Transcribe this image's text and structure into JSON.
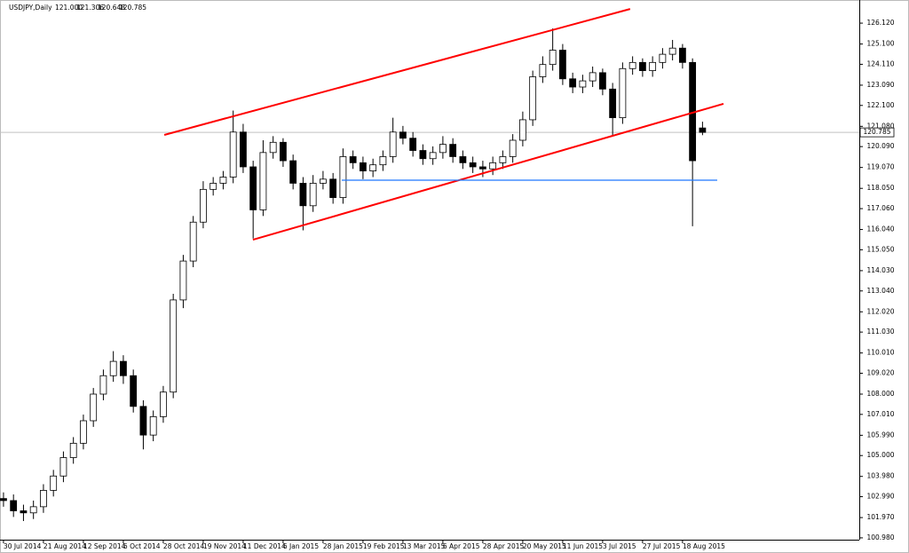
{
  "chart_data": {
    "type": "candlestick",
    "symbol": "USDJPY,Daily",
    "header_values": [
      "121.000",
      "121.306",
      "120.648",
      "120.785"
    ],
    "xlim": [
      -1.4,
      342.8
    ],
    "ylim": [
      100.89,
      127.25
    ],
    "xticks": [
      {
        "value": 0,
        "label": "30 Jul 2014"
      },
      {
        "value": 16,
        "label": "21 Aug 2014"
      },
      {
        "value": 32,
        "label": "12 Sep 2014"
      },
      {
        "value": 48,
        "label": "6 Oct 2014"
      },
      {
        "value": 64,
        "label": "28 Oct 2014"
      },
      {
        "value": 80,
        "label": "19 Nov 2014"
      },
      {
        "value": 96,
        "label": "11 Dec 2014"
      },
      {
        "value": 112,
        "label": "6 Jan 2015"
      },
      {
        "value": 128,
        "label": "28 Jan 2015"
      },
      {
        "value": 144,
        "label": "19 Feb 2015"
      },
      {
        "value": 160,
        "label": "13 Mar 2015"
      },
      {
        "value": 176,
        "label": "6 Apr 2015"
      },
      {
        "value": 192,
        "label": "28 Apr 2015"
      },
      {
        "value": 208,
        "label": "20 May 2015"
      },
      {
        "value": 224,
        "label": "11 Jun 2015"
      },
      {
        "value": 240,
        "label": "3 Jul 2015"
      },
      {
        "value": 256,
        "label": "27 Jul 2015"
      },
      {
        "value": 272,
        "label": "18 Aug 2015"
      }
    ],
    "yticks": [
      {
        "value": 126.12,
        "label": "126.120"
      },
      {
        "value": 125.1,
        "label": "125.100"
      },
      {
        "value": 124.11,
        "label": "124.110"
      },
      {
        "value": 123.09,
        "label": "123.090"
      },
      {
        "value": 122.1,
        "label": "122.100"
      },
      {
        "value": 121.08,
        "label": "121.080"
      },
      {
        "value": 120.09,
        "label": "120.090"
      },
      {
        "value": 119.07,
        "label": "119.070"
      },
      {
        "value": 118.05,
        "label": "118.050"
      },
      {
        "value": 117.06,
        "label": "117.060"
      },
      {
        "value": 116.04,
        "label": "116.040"
      },
      {
        "value": 115.05,
        "label": "115.050"
      },
      {
        "value": 114.03,
        "label": "114.030"
      },
      {
        "value": 113.04,
        "label": "113.040"
      },
      {
        "value": 112.02,
        "label": "112.020"
      },
      {
        "value": 111.03,
        "label": "111.030"
      },
      {
        "value": 110.01,
        "label": "110.010"
      },
      {
        "value": 109.02,
        "label": "109.020"
      },
      {
        "value": 108,
        "label": "108.000"
      },
      {
        "value": 107.01,
        "label": "107.010"
      },
      {
        "value": 105.99,
        "label": "105.990"
      },
      {
        "value": 105,
        "label": "105.000"
      },
      {
        "value": 103.98,
        "label": "103.980"
      },
      {
        "value": 102.99,
        "label": "102.990"
      },
      {
        "value": 101.97,
        "label": "101.970"
      },
      {
        "value": 100.98,
        "label": "100.980"
      }
    ],
    "current_price": {
      "value": 120.785,
      "label": "120.785"
    },
    "up_color": "#ffffff",
    "down_color": "#000000",
    "x": [
      0,
      4,
      8,
      12,
      16,
      20,
      24,
      28,
      32,
      36,
      40,
      44,
      48,
      52,
      56,
      60,
      64,
      68,
      72,
      76,
      80,
      84,
      88,
      92,
      96,
      100,
      104,
      108,
      112,
      116,
      120,
      124,
      128,
      132,
      136,
      140,
      144,
      148,
      152,
      156,
      160,
      164,
      168,
      172,
      176,
      180,
      184,
      188,
      192,
      196,
      200,
      204,
      208,
      212,
      216,
      220,
      224,
      228,
      232,
      236,
      240,
      244,
      248,
      252,
      256,
      260,
      264,
      268,
      272,
      276,
      280
    ],
    "open": [
      102.9,
      102.8,
      102.3,
      102.2,
      102.5,
      103.3,
      104.0,
      104.9,
      105.6,
      106.7,
      108.0,
      108.9,
      109.6,
      108.9,
      107.4,
      106.0,
      106.9,
      108.1,
      112.6,
      114.5,
      116.4,
      118.0,
      118.3,
      118.6,
      120.8,
      119.1,
      117.0,
      119.8,
      120.3,
      119.4,
      118.3,
      117.2,
      118.3,
      118.5,
      117.6,
      119.6,
      119.3,
      118.9,
      119.2,
      119.6,
      120.8,
      120.5,
      119.9,
      119.5,
      119.8,
      120.2,
      119.6,
      119.3,
      119.1,
      119.0,
      119.3,
      119.6,
      120.4,
      121.4,
      123.5,
      124.1,
      124.8,
      123.4,
      123.0,
      123.3,
      123.7,
      122.9,
      121.5,
      123.9,
      124.2,
      123.8,
      124.2,
      124.6,
      124.9,
      124.2,
      121.0
    ],
    "high": [
      103.2,
      103.1,
      102.6,
      102.8,
      103.6,
      104.3,
      105.2,
      105.9,
      107.0,
      108.3,
      109.2,
      110.1,
      109.9,
      109.2,
      107.7,
      107.2,
      108.4,
      112.9,
      114.8,
      116.7,
      118.4,
      118.6,
      118.9,
      121.85,
      121.2,
      119.4,
      120.4,
      120.6,
      120.5,
      119.7,
      118.6,
      118.7,
      118.9,
      118.8,
      120.0,
      119.9,
      119.6,
      119.5,
      119.9,
      121.5,
      121.1,
      120.8,
      120.2,
      120.1,
      120.6,
      120.5,
      119.9,
      119.6,
      119.4,
      119.6,
      119.9,
      120.7,
      121.8,
      123.8,
      124.5,
      125.86,
      125.1,
      123.7,
      123.6,
      124.0,
      123.9,
      123.2,
      124.2,
      124.5,
      124.4,
      124.5,
      124.9,
      125.3,
      125.1,
      124.4,
      121.306
    ],
    "low": [
      102.5,
      102.0,
      101.8,
      101.9,
      102.2,
      103.0,
      103.7,
      104.6,
      105.3,
      106.4,
      107.7,
      108.6,
      108.5,
      107.1,
      105.3,
      105.7,
      106.6,
      107.8,
      112.2,
      114.2,
      116.1,
      117.7,
      118.0,
      118.3,
      118.8,
      115.6,
      116.7,
      119.5,
      119.1,
      118.0,
      116.0,
      116.9,
      118.0,
      117.3,
      117.3,
      119.0,
      118.5,
      118.6,
      118.9,
      119.3,
      120.2,
      119.6,
      119.2,
      119.2,
      119.5,
      119.3,
      119.0,
      118.8,
      118.6,
      118.7,
      119.0,
      119.3,
      120.1,
      121.1,
      123.2,
      123.8,
      123.1,
      122.7,
      122.7,
      123.0,
      122.6,
      120.6,
      121.2,
      123.6,
      123.5,
      123.5,
      123.9,
      124.3,
      123.9,
      116.2,
      120.648
    ],
    "close": [
      102.8,
      102.3,
      102.2,
      102.5,
      103.3,
      104.0,
      104.9,
      105.6,
      106.7,
      108.0,
      108.9,
      109.6,
      108.9,
      107.4,
      106.0,
      106.9,
      108.1,
      112.6,
      114.5,
      116.4,
      118.0,
      118.3,
      118.6,
      120.8,
      119.1,
      117.0,
      119.8,
      120.3,
      119.4,
      118.3,
      117.2,
      118.3,
      118.5,
      117.6,
      119.6,
      119.3,
      118.9,
      119.2,
      119.6,
      120.8,
      120.5,
      119.9,
      119.5,
      119.8,
      120.2,
      119.6,
      119.3,
      119.1,
      119.0,
      119.3,
      119.6,
      120.4,
      121.4,
      123.5,
      124.1,
      124.8,
      123.4,
      123.0,
      123.3,
      123.7,
      122.9,
      121.5,
      123.9,
      124.2,
      123.8,
      124.2,
      124.6,
      124.9,
      124.2,
      119.4,
      120.785
    ],
    "lines": [
      {
        "color": "#ff0000",
        "x": [
          64.4,
          251
        ],
        "y": [
          120.66,
          126.81
        ]
      },
      {
        "color": "#ff0000",
        "x": [
          99.9,
          288.4
        ],
        "y": [
          115.54,
          122.18
        ]
      },
      {
        "color": "#1e78ff",
        "x": [
          135.5,
          285.9
        ],
        "y": [
          118.45,
          118.45
        ]
      }
    ]
  }
}
